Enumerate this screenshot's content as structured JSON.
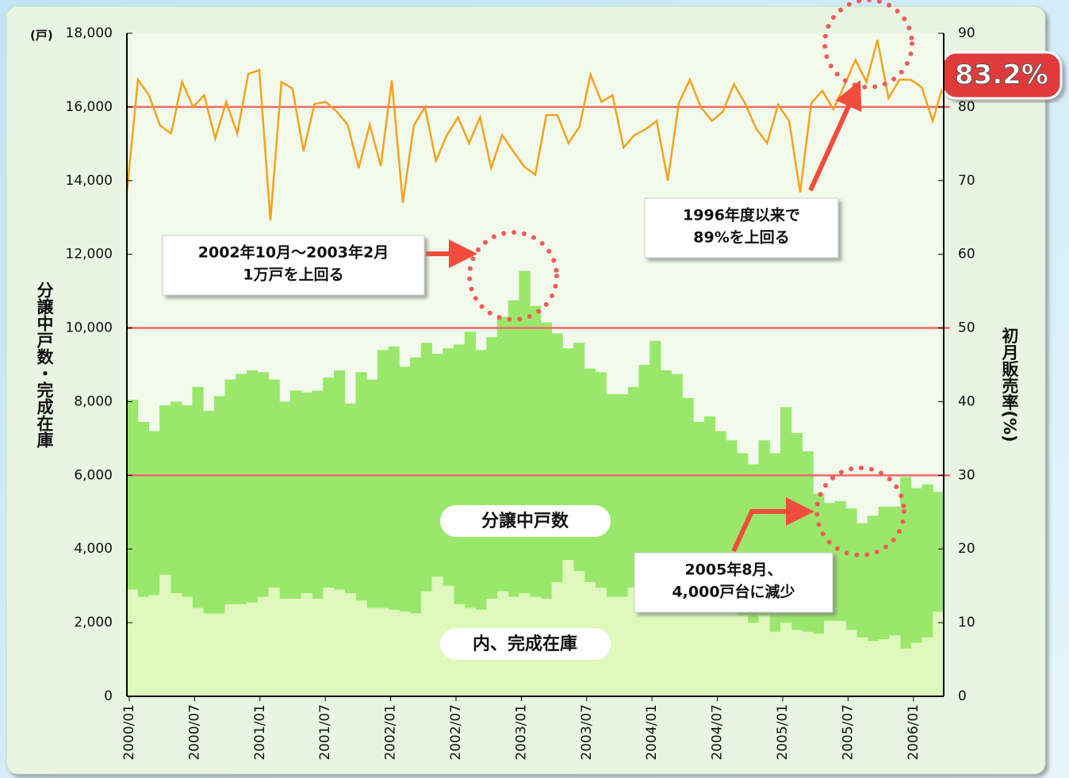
{
  "chart_data": {
    "type": "bar-line",
    "y_label": "分譲中戸数・完成在庫",
    "y_unit": "(戸)",
    "y2_label": "初月販売率(%)",
    "categories": [
      "2000/01",
      null,
      null,
      null,
      null,
      null,
      "2000/07",
      null,
      null,
      null,
      null,
      null,
      "2001/01",
      null,
      null,
      null,
      null,
      null,
      "2001/07",
      null,
      null,
      null,
      null,
      null,
      "2002/01",
      null,
      null,
      null,
      null,
      null,
      "2002/07",
      null,
      null,
      null,
      null,
      null,
      "2003/01",
      null,
      null,
      null,
      null,
      null,
      "2003/07",
      null,
      null,
      null,
      null,
      null,
      "2004/01",
      null,
      null,
      null,
      null,
      null,
      "2004/07",
      null,
      null,
      null,
      null,
      null,
      "2005/01",
      null,
      null,
      null,
      null,
      null,
      "2005/07",
      null,
      null,
      null,
      null,
      null,
      "2006/01",
      null,
      null
    ],
    "series": [
      {
        "name": "分譲中戸数",
        "color": "#9ae86b",
        "values": [
          8050,
          7450,
          7200,
          7900,
          8000,
          7900,
          8400,
          7750,
          8150,
          8600,
          8750,
          8850,
          8800,
          8600,
          8000,
          8300,
          8250,
          8300,
          8650,
          8850,
          7950,
          8800,
          8600,
          9400,
          9500,
          8950,
          9200,
          9600,
          9300,
          9450,
          9550,
          9900,
          9400,
          9750,
          10300,
          10750,
          11550,
          10600,
          10150,
          9850,
          9450,
          9600,
          8900,
          8800,
          8200,
          8200,
          8400,
          9000,
          9650,
          8850,
          8750,
          8100,
          7450,
          7600,
          7200,
          6950,
          6600,
          6300,
          6950,
          6600,
          7850,
          7150,
          6650,
          5500,
          5250,
          5300,
          5100,
          4700,
          4900,
          5150,
          5150,
          5950,
          5650,
          5750,
          5550
        ]
      },
      {
        "name": "内、完成在庫",
        "color": "#def9bb",
        "values": [
          2900,
          2700,
          2750,
          3300,
          2800,
          2700,
          2400,
          2250,
          2250,
          2500,
          2500,
          2550,
          2700,
          2950,
          2650,
          2650,
          2800,
          2650,
          2950,
          2900,
          2800,
          2600,
          2400,
          2400,
          2350,
          2300,
          2250,
          2850,
          3250,
          3000,
          2500,
          2400,
          2350,
          2650,
          2850,
          2700,
          2800,
          2700,
          2650,
          3100,
          3700,
          3400,
          3100,
          2950,
          2700,
          2700,
          2950,
          2900,
          2850,
          2700,
          2650,
          2600,
          2550,
          2450,
          2350,
          2300,
          2200,
          2000,
          2200,
          1750,
          2000,
          1800,
          1750,
          1700,
          2050,
          2050,
          1800,
          1600,
          1500,
          1550,
          1650,
          1300,
          1450,
          1600,
          2300
        ]
      },
      {
        "name": "初月販売率",
        "color": "#f6a21e",
        "axis": "y2",
        "values": [
          68.4,
          83.7,
          81.6,
          77.5,
          76.4,
          83.4,
          80,
          81.6,
          75.7,
          80.7,
          76.4,
          84.5,
          85,
          64.6,
          83.4,
          82.5,
          74,
          80.4,
          80.7,
          79.4,
          77.6,
          71.7,
          77.6,
          72,
          83.6,
          67,
          77.5,
          80,
          72.7,
          76.2,
          78.6,
          75.1,
          78.6,
          71.7,
          76.2,
          74,
          71.9,
          70.8,
          78.9,
          78.9,
          75.1,
          77.3,
          84.4,
          80.7,
          81.6,
          74.5,
          76.2,
          77,
          78.1,
          70,
          80.5,
          83.7,
          80,
          78.1,
          79.4,
          83.1,
          80.5,
          77.1,
          75.1,
          80.3,
          78.1,
          68.4,
          80.5,
          82.2,
          79.7,
          82.9,
          86.4,
          83.4,
          89.1,
          81.2,
          83.7,
          83.7,
          82.7,
          78.1,
          83.2
        ]
      }
    ],
    "ylim": [
      0,
      18000
    ],
    "yticks": [
      0,
      {
        "value": 2000,
        "label": "2,000"
      },
      {
        "value": 4000,
        "label": "4,000"
      },
      {
        "value": 6000,
        "label": "6,000"
      },
      {
        "value": 8000,
        "label": "8,000"
      },
      {
        "value": 10000,
        "label": "10,000"
      },
      {
        "value": 12000,
        "label": "12,000"
      },
      {
        "value": 14000,
        "label": "14,000"
      },
      {
        "value": 16000,
        "label": "16,000"
      },
      {
        "value": 18000,
        "label": "18,000"
      }
    ],
    "y2lim": [
      0,
      90
    ],
    "y2ticks": [
      0,
      10,
      20,
      30,
      40,
      50,
      60,
      70,
      80,
      90
    ],
    "reference_lines": [
      6000,
      10000,
      16000
    ],
    "badge": "83.2%",
    "annotations": [
      [
        "2002年10月〜2003年2月",
        "1万戸を上回る"
      ],
      [
        "1996年度以来で",
        "89%を上回る"
      ],
      [
        "2005年8月、",
        "4,000戸台に減少"
      ]
    ]
  }
}
